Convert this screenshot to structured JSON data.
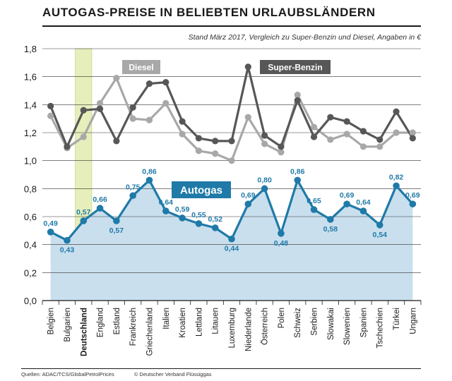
{
  "header": {
    "title": "AUTOGAS-PREISE IN BELIEBTEN URLAUBSLÄNDERN",
    "subtitle": "Stand März 2017, Vergleich zu Super-Benzin und Diesel, Angaben in €"
  },
  "footer": {
    "sources": "Quellen: ADAC/TCS/GlobalPetrolPrices",
    "copyright": "© Deutscher Verband Flüssiggas"
  },
  "colors": {
    "autogas": "#1f7aa8",
    "autogas_fill": "#c9dfee",
    "diesel": "#a8a8a8",
    "super_benzin": "#575757",
    "highlight": "#e6eebb"
  },
  "chart_data": {
    "type": "line",
    "categories": [
      "Belgien",
      "Bulgarien",
      "Deutschland",
      "England",
      "Estland",
      "Frankreich",
      "Griechenland",
      "Italien",
      "Kroatien",
      "Lettland",
      "Litauen",
      "Luxemburg",
      "Niederlande",
      "Österreich",
      "Polen",
      "Schweiz",
      "Serbien",
      "Slowakai",
      "Slowenien",
      "Spanien",
      "Tschechien",
      "Türkei",
      "Ungarn"
    ],
    "highlighted_category": "Deutschland",
    "ylim": [
      0,
      1.8
    ],
    "yticks": [
      "0,0",
      "0,2",
      "0,4",
      "0,6",
      "0,8",
      "1,0",
      "1,2",
      "1,4",
      "1,6",
      "1,8"
    ],
    "grid": true,
    "series": [
      {
        "name": "Autogas",
        "values": [
          0.49,
          0.43,
          0.57,
          0.66,
          0.57,
          0.75,
          0.86,
          0.64,
          0.59,
          0.55,
          0.52,
          0.44,
          0.69,
          0.8,
          0.48,
          0.86,
          0.65,
          0.58,
          0.69,
          0.64,
          0.54,
          0.82,
          0.69
        ],
        "labels": [
          "0,49",
          "0,43",
          "0,57",
          "0,66",
          "0,57",
          "0,75",
          "0,86",
          "0,64",
          "0,59",
          "0,55",
          "0,52",
          "0,44",
          "0,69",
          "0,80",
          "0,48",
          "0,86",
          "0,65",
          "0,58",
          "0,69",
          "0,64",
          "0,54",
          "0,82",
          "0,69"
        ]
      },
      {
        "name": "Diesel",
        "values": [
          1.32,
          1.09,
          1.17,
          1.41,
          1.59,
          1.3,
          1.29,
          1.41,
          1.19,
          1.07,
          1.05,
          1.0,
          1.31,
          1.12,
          1.06,
          1.47,
          1.24,
          1.15,
          1.19,
          1.1,
          1.1,
          1.2,
          1.2
        ]
      },
      {
        "name": "Super-Benzin",
        "values": [
          1.39,
          1.1,
          1.36,
          1.37,
          1.14,
          1.38,
          1.55,
          1.56,
          1.28,
          1.16,
          1.14,
          1.14,
          1.67,
          1.18,
          1.1,
          1.43,
          1.17,
          1.31,
          1.28,
          1.21,
          1.15,
          1.35,
          1.16
        ]
      }
    ]
  }
}
